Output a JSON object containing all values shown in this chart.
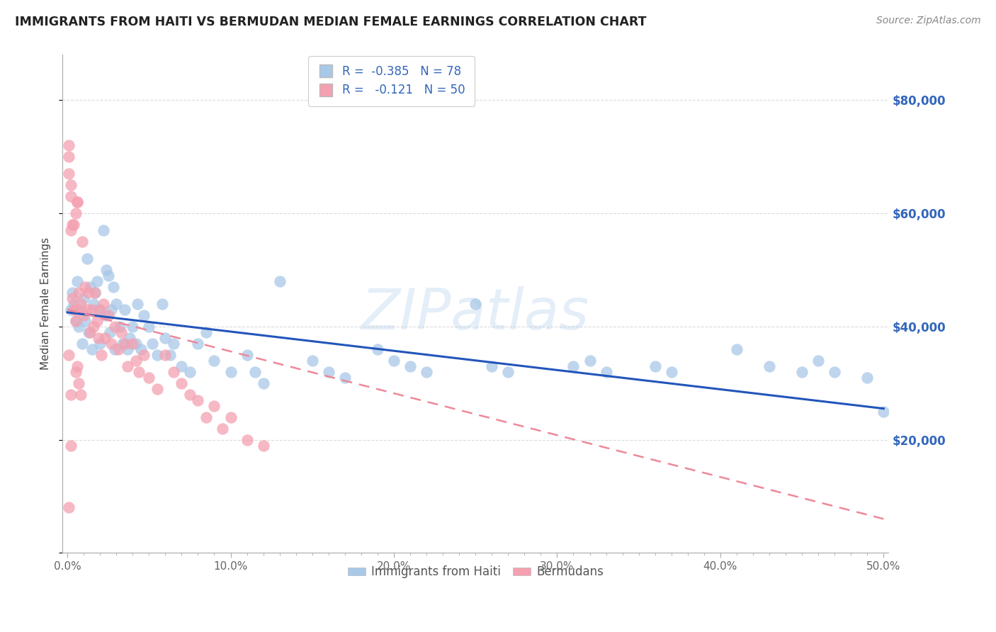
{
  "title": "IMMIGRANTS FROM HAITI VS BERMUDAN MEDIAN FEMALE EARNINGS CORRELATION CHART",
  "source": "Source: ZipAtlas.com",
  "ylabel": "Median Female Earnings",
  "x_tick_labels": [
    "0.0%",
    "",
    "",
    "",
    "",
    "",
    "",
    "",
    "",
    "",
    "10.0%",
    "",
    "",
    "",
    "",
    "",
    "",
    "",
    "",
    "",
    "20.0%",
    "",
    "",
    "",
    "",
    "",
    "",
    "",
    "",
    "",
    "30.0%",
    "",
    "",
    "",
    "",
    "",
    "",
    "",
    "",
    "",
    "40.0%",
    "",
    "",
    "",
    "",
    "",
    "",
    "",
    "",
    "",
    "50.0%"
  ],
  "x_tick_vals": [
    0.0,
    0.01,
    0.02,
    0.03,
    0.04,
    0.05,
    0.06,
    0.07,
    0.08,
    0.09,
    0.1,
    0.11,
    0.12,
    0.13,
    0.14,
    0.15,
    0.16,
    0.17,
    0.18,
    0.19,
    0.2,
    0.21,
    0.22,
    0.23,
    0.24,
    0.25,
    0.26,
    0.27,
    0.28,
    0.29,
    0.3,
    0.31,
    0.32,
    0.33,
    0.34,
    0.35,
    0.36,
    0.37,
    0.38,
    0.39,
    0.4,
    0.41,
    0.42,
    0.43,
    0.44,
    0.45,
    0.46,
    0.47,
    0.48,
    0.49,
    0.5
  ],
  "x_major_ticks": [
    0.0,
    0.1,
    0.2,
    0.3,
    0.4,
    0.5
  ],
  "x_major_labels": [
    "0.0%",
    "10.0%",
    "20.0%",
    "30.0%",
    "40.0%",
    "50.0%"
  ],
  "y_tick_vals": [
    0,
    20000,
    40000,
    60000,
    80000
  ],
  "y_tick_labels": [
    "",
    "$20,000",
    "$40,000",
    "$60,000",
    "$80,000"
  ],
  "xlim": [
    -0.003,
    0.503
  ],
  "ylim": [
    0,
    88000
  ],
  "color_blue": "#A8C8E8",
  "color_pink": "#F4A0B0",
  "color_blue_line": "#2255BB",
  "color_pink_line": "#EE8899",
  "color_blue_text": "#3366BB",
  "watermark": "ZIPatlas",
  "legend_label_1": "Immigrants from Haiti",
  "legend_label_2": "Bermudans",
  "haiti_x": [
    0.002,
    0.003,
    0.004,
    0.005,
    0.006,
    0.007,
    0.008,
    0.009,
    0.01,
    0.011,
    0.012,
    0.013,
    0.014,
    0.015,
    0.016,
    0.017,
    0.018,
    0.019,
    0.02,
    0.022,
    0.023,
    0.024,
    0.025,
    0.026,
    0.027,
    0.028,
    0.029,
    0.03,
    0.032,
    0.034,
    0.035,
    0.037,
    0.038,
    0.04,
    0.042,
    0.043,
    0.045,
    0.047,
    0.05,
    0.052,
    0.055,
    0.058,
    0.06,
    0.063,
    0.065,
    0.07,
    0.075,
    0.08,
    0.085,
    0.09,
    0.1,
    0.11,
    0.115,
    0.12,
    0.13,
    0.15,
    0.16,
    0.17,
    0.19,
    0.2,
    0.21,
    0.22,
    0.25,
    0.26,
    0.27,
    0.31,
    0.32,
    0.33,
    0.36,
    0.37,
    0.41,
    0.43,
    0.45,
    0.46,
    0.47,
    0.49,
    0.5
  ],
  "haiti_y": [
    43000,
    46000,
    44000,
    41000,
    48000,
    40000,
    43000,
    37000,
    45000,
    41000,
    52000,
    39000,
    47000,
    36000,
    44000,
    46000,
    48000,
    43000,
    37000,
    57000,
    42000,
    50000,
    49000,
    39000,
    43000,
    47000,
    36000,
    44000,
    40000,
    37000,
    43000,
    36000,
    38000,
    40000,
    37000,
    44000,
    36000,
    42000,
    40000,
    37000,
    35000,
    44000,
    38000,
    35000,
    37000,
    33000,
    32000,
    37000,
    39000,
    34000,
    32000,
    35000,
    32000,
    30000,
    48000,
    34000,
    32000,
    31000,
    36000,
    34000,
    33000,
    32000,
    44000,
    33000,
    32000,
    33000,
    34000,
    32000,
    33000,
    32000,
    36000,
    33000,
    32000,
    34000,
    32000,
    31000,
    25000
  ],
  "bermuda_x": [
    0.001,
    0.001,
    0.002,
    0.002,
    0.003,
    0.004,
    0.004,
    0.005,
    0.006,
    0.007,
    0.008,
    0.009,
    0.01,
    0.011,
    0.012,
    0.013,
    0.014,
    0.015,
    0.016,
    0.017,
    0.018,
    0.019,
    0.02,
    0.021,
    0.022,
    0.023,
    0.025,
    0.027,
    0.029,
    0.031,
    0.033,
    0.035,
    0.037,
    0.04,
    0.042,
    0.044,
    0.047,
    0.05,
    0.055,
    0.06,
    0.065,
    0.07,
    0.075,
    0.08,
    0.085,
    0.09,
    0.095,
    0.1,
    0.11,
    0.12
  ],
  "bermuda_y": [
    72000,
    67000,
    57000,
    63000,
    45000,
    43000,
    58000,
    41000,
    62000,
    46000,
    44000,
    55000,
    42000,
    47000,
    43000,
    46000,
    39000,
    43000,
    40000,
    46000,
    41000,
    38000,
    43000,
    35000,
    44000,
    38000,
    42000,
    37000,
    40000,
    36000,
    39000,
    37000,
    33000,
    37000,
    34000,
    32000,
    35000,
    31000,
    29000,
    35000,
    32000,
    30000,
    28000,
    27000,
    24000,
    26000,
    22000,
    24000,
    20000,
    19000
  ],
  "bermuda_extra_x": [
    0.001,
    0.002,
    0.003,
    0.005,
    0.005,
    0.006
  ],
  "bermuda_extra_y": [
    70000,
    65000,
    58000,
    60000,
    43000,
    62000
  ],
  "bermuda_low_x": [
    0.001,
    0.002,
    0.005,
    0.006,
    0.007,
    0.008,
    0.001,
    0.002
  ],
  "bermuda_low_y": [
    35000,
    28000,
    32000,
    33000,
    30000,
    28000,
    8000,
    19000
  ]
}
